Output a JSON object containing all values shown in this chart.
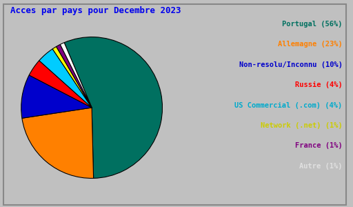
{
  "title": "Acces par pays pour Decembre 2023",
  "title_color": "#0000ee",
  "title_fontsize": 9,
  "background_color": "#c0c0c0",
  "labels": [
    "Portugal (56%)",
    "Allemagne (23%)",
    "Non-resolu/Inconnu (10%)",
    "Russie (4%)",
    "US Commercial (.com) (4%)",
    "Network (.net) (1%)",
    "France (1%)",
    "Autre (1%)"
  ],
  "values": [
    56,
    23,
    10,
    4,
    4,
    1,
    1,
    1
  ],
  "colors": [
    "#007060",
    "#ff8000",
    "#0000cc",
    "#ff0000",
    "#00ccff",
    "#ffff00",
    "#800080",
    "#ffffff"
  ],
  "label_colors": [
    "#007060",
    "#ff8000",
    "#0000cc",
    "#ff0000",
    "#00aacc",
    "#cccc00",
    "#800080",
    "#e0e0e0"
  ],
  "legend_fontsize": 7.5,
  "font_family": "monospace"
}
